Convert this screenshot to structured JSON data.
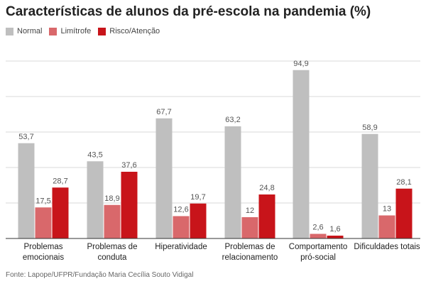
{
  "title": "Características de alunos da pré-escola na pandemia (%)",
  "source": "Fonte: Lapope/UFPR/Fundação Maria Cecília Souto Vidigal",
  "chart_data": {
    "type": "bar",
    "title": "Características de alunos da pré-escola na pandemia (%)",
    "categories": [
      [
        "Problemas",
        "emocionais"
      ],
      [
        "Problemas de",
        "conduta"
      ],
      [
        "Hiperatividade"
      ],
      [
        "Problemas de",
        "relacionamento"
      ],
      [
        "Comportamento",
        "pró-social"
      ],
      [
        "Dificuldades totais"
      ]
    ],
    "series": [
      {
        "name": "Normal",
        "color": "#bfbfbf",
        "values": [
          53.7,
          43.5,
          67.7,
          63.2,
          94.9,
          58.9
        ]
      },
      {
        "name": "Limítrofe",
        "color": "#d9686b",
        "values": [
          17.5,
          18.9,
          12.6,
          12,
          2.6,
          13
        ]
      },
      {
        "name": "Risco/Atenção",
        "color": "#c8141a",
        "values": [
          28.7,
          37.6,
          19.7,
          24.8,
          1.6,
          28.1
        ]
      }
    ],
    "ylim": [
      0,
      100
    ],
    "grid": true,
    "legend": "top-left",
    "xlabel": "",
    "ylabel": ""
  }
}
